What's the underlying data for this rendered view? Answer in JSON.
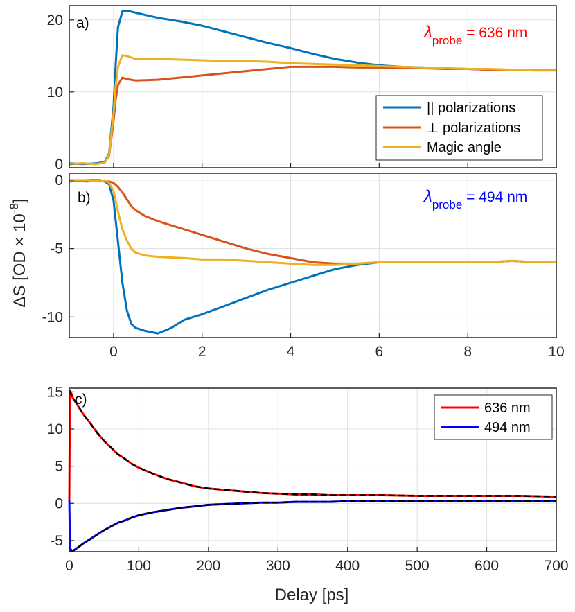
{
  "chart_data": [
    {
      "type": "line",
      "panel_label": "a)",
      "annotation": {
        "symbol": "λ",
        "subscript": "probe",
        "text": " = 636 nm",
        "color": "#ff0000"
      },
      "xlim": [
        -1,
        10
      ],
      "ylim": [
        -0.5,
        22
      ],
      "xticks": [
        0,
        2,
        4,
        6,
        8,
        10
      ],
      "yticks": [
        0,
        10,
        20
      ],
      "grid": true,
      "legend_position": "inside-right",
      "series": [
        {
          "name": "|| polarizations",
          "color": "#0072bd",
          "x": [
            -1.0,
            -0.7,
            -0.4,
            -0.2,
            -0.1,
            0.0,
            0.05,
            0.1,
            0.2,
            0.3,
            0.5,
            1.0,
            1.5,
            2.0,
            2.5,
            3.0,
            3.5,
            4.0,
            4.5,
            5.0,
            5.5,
            6.0,
            6.5,
            7.0,
            7.5,
            8.0,
            8.5,
            9.0,
            9.5,
            10.0
          ],
          "y": [
            0.1,
            0,
            0.1,
            0.3,
            1.5,
            8,
            14,
            19,
            21.2,
            21.3,
            21,
            20.3,
            19.8,
            19.2,
            18.4,
            17.6,
            16.8,
            16.1,
            15.3,
            14.6,
            14.1,
            13.7,
            13.5,
            13.4,
            13.3,
            13.2,
            13.1,
            13.1,
            13.1,
            13.0
          ]
        },
        {
          "name": "⊥ polarizations",
          "color": "#d95319",
          "x": [
            -1.0,
            -0.7,
            -0.4,
            -0.2,
            -0.1,
            0.0,
            0.05,
            0.1,
            0.2,
            0.3,
            0.5,
            1.0,
            1.5,
            2.0,
            2.5,
            3.0,
            3.5,
            4.0,
            4.5,
            5.0,
            5.5,
            6.0,
            6.5,
            7.0,
            7.5,
            8.0,
            8.5,
            9.0,
            9.5,
            10.0
          ],
          "y": [
            0,
            0.1,
            0,
            0.2,
            1.2,
            6,
            9,
            11,
            12,
            11.8,
            11.6,
            11.7,
            12,
            12.3,
            12.6,
            12.9,
            13.2,
            13.5,
            13.5,
            13.5,
            13.4,
            13.4,
            13.3,
            13.3,
            13.2,
            13.2,
            13.1,
            13.1,
            13.0,
            13.0
          ]
        },
        {
          "name": "Magic angle",
          "color": "#edb120",
          "x": [
            -1.0,
            -0.7,
            -0.4,
            -0.2,
            -0.1,
            0.0,
            0.05,
            0.1,
            0.2,
            0.3,
            0.5,
            1.0,
            1.5,
            2.0,
            2.5,
            3.0,
            3.5,
            4.0,
            4.5,
            5.0,
            5.5,
            6.0,
            6.5,
            7.0,
            7.5,
            8.0,
            8.5,
            9.0,
            9.5,
            10.0
          ],
          "y": [
            0,
            0.1,
            0,
            0.2,
            1.3,
            7,
            11,
            13.5,
            15.1,
            15,
            14.6,
            14.6,
            14.5,
            14.4,
            14.3,
            14.3,
            14.2,
            14.0,
            13.9,
            13.8,
            13.7,
            13.6,
            13.5,
            13.4,
            13.3,
            13.2,
            13.2,
            13.1,
            13.0,
            13.0
          ]
        }
      ]
    },
    {
      "type": "line",
      "panel_label": "b)",
      "annotation": {
        "symbol": "λ",
        "subscript": "probe",
        "text": " = 494 nm",
        "color": "#0000ff"
      },
      "xlim": [
        -1,
        10
      ],
      "ylim": [
        -11.5,
        0.5
      ],
      "xticks": [
        0,
        2,
        4,
        6,
        8,
        10
      ],
      "yticks": [
        -10,
        -5,
        0
      ],
      "grid": true,
      "series": [
        {
          "name": "|| polarizations",
          "color": "#0072bd",
          "x": [
            -1.0,
            -0.6,
            -0.3,
            -0.2,
            -0.1,
            0.0,
            0.1,
            0.2,
            0.3,
            0.4,
            0.5,
            0.7,
            1.0,
            1.3,
            1.6,
            2.0,
            2.5,
            3.0,
            3.5,
            4.0,
            4.5,
            5.0,
            5.5,
            6.0,
            6.5,
            7.0,
            7.5,
            8.0,
            8.5,
            9.0,
            9.5,
            10.0
          ],
          "y": [
            -0.1,
            0,
            0,
            -0.1,
            -0.3,
            -1.5,
            -4.5,
            -7.5,
            -9.5,
            -10.5,
            -10.8,
            -11.0,
            -11.2,
            -10.8,
            -10.2,
            -9.8,
            -9.2,
            -8.6,
            -8.0,
            -7.5,
            -7.0,
            -6.5,
            -6.2,
            -6.0,
            -6.0,
            -6.0,
            -6.0,
            -6.0,
            -6.0,
            -5.9,
            -6.0,
            -6.0
          ]
        },
        {
          "name": "⊥ polarizations",
          "color": "#d95319",
          "x": [
            -1.0,
            -0.6,
            -0.3,
            -0.2,
            -0.1,
            0.0,
            0.1,
            0.2,
            0.3,
            0.4,
            0.5,
            0.7,
            1.0,
            1.3,
            1.6,
            2.0,
            2.5,
            3.0,
            3.5,
            4.0,
            4.5,
            5.0,
            5.5,
            6.0,
            6.5,
            7.0,
            7.5,
            8.0,
            8.5,
            9.0,
            9.5,
            10.0
          ],
          "y": [
            0,
            -0.1,
            0,
            -0.1,
            -0.1,
            -0.2,
            -0.5,
            -0.9,
            -1.4,
            -1.9,
            -2.2,
            -2.6,
            -3.0,
            -3.3,
            -3.6,
            -4.0,
            -4.5,
            -5.0,
            -5.4,
            -5.7,
            -6.0,
            -6.1,
            -6.1,
            -6.0,
            -6.0,
            -6.0,
            -6.0,
            -6.0,
            -6.0,
            -5.9,
            -6.0,
            -6.0
          ]
        },
        {
          "name": "Magic angle",
          "color": "#edb120",
          "x": [
            -1.0,
            -0.6,
            -0.3,
            -0.2,
            -0.1,
            0.0,
            0.1,
            0.2,
            0.3,
            0.4,
            0.5,
            0.7,
            1.0,
            1.3,
            1.6,
            2.0,
            2.5,
            3.0,
            3.5,
            4.0,
            4.5,
            5.0,
            5.5,
            6.0,
            6.5,
            7.0,
            7.5,
            8.0,
            8.5,
            9.0,
            9.5,
            10.0
          ],
          "y": [
            0,
            0,
            -0.1,
            0,
            -0.2,
            -0.8,
            -2.3,
            -3.6,
            -4.4,
            -5.0,
            -5.3,
            -5.5,
            -5.6,
            -5.65,
            -5.7,
            -5.8,
            -5.8,
            -5.9,
            -6.0,
            -6.1,
            -6.2,
            -6.2,
            -6.1,
            -6.0,
            -6.0,
            -6.0,
            -6.0,
            -6.0,
            -6.0,
            -5.9,
            -6.0,
            -6.0
          ]
        }
      ]
    },
    {
      "type": "line",
      "panel_label": "c)",
      "xlim": [
        0,
        700
      ],
      "ylim": [
        -6.5,
        15.5
      ],
      "xticks": [
        0,
        100,
        200,
        300,
        400,
        500,
        600,
        700
      ],
      "yticks": [
        -5,
        0,
        5,
        10,
        15
      ],
      "xlabel": "Delay [ps]",
      "grid": true,
      "legend_position": "top-right",
      "series": [
        {
          "name": "636 nm",
          "color": "#ff0000",
          "x": [
            0,
            1,
            3,
            5,
            10,
            20,
            30,
            40,
            50,
            60,
            70,
            80,
            90,
            100,
            120,
            140,
            160,
            180,
            200,
            225,
            250,
            275,
            300,
            325,
            350,
            375,
            400,
            450,
            500,
            550,
            600,
            650,
            700
          ],
          "y": [
            0.5,
            15.2,
            14.8,
            14.2,
            13.5,
            12.0,
            10.8,
            9.5,
            8.4,
            7.5,
            6.6,
            6.0,
            5.3,
            4.8,
            4.0,
            3.3,
            2.8,
            2.3,
            2.0,
            1.8,
            1.6,
            1.4,
            1.3,
            1.2,
            1.2,
            1.1,
            1.1,
            1.1,
            1.0,
            1.0,
            1.0,
            1.0,
            0.9
          ]
        },
        {
          "name": "494 nm",
          "color": "#0000ff",
          "x": [
            0,
            1,
            3,
            5,
            10,
            20,
            30,
            40,
            50,
            60,
            70,
            80,
            90,
            100,
            120,
            140,
            160,
            180,
            200,
            225,
            250,
            275,
            300,
            325,
            350,
            375,
            400,
            450,
            500,
            550,
            600,
            650,
            700
          ],
          "y": [
            0.5,
            -6.0,
            -6.3,
            -6.4,
            -6.1,
            -5.4,
            -4.8,
            -4.2,
            -3.6,
            -3.1,
            -2.6,
            -2.3,
            -1.9,
            -1.6,
            -1.2,
            -0.9,
            -0.6,
            -0.4,
            -0.2,
            -0.1,
            0,
            0.1,
            0.1,
            0.2,
            0.2,
            0.2,
            0.3,
            0.3,
            0.3,
            0.3,
            0.3,
            0.3,
            0.3
          ]
        }
      ],
      "fits": {
        "color": "#000000",
        "style": "dashed",
        "x": [
          0,
          5,
          10,
          20,
          30,
          40,
          50,
          60,
          70,
          80,
          90,
          100,
          120,
          140,
          160,
          180,
          200,
          225,
          250,
          275,
          300,
          325,
          350,
          375,
          400,
          450,
          500,
          550,
          600,
          650,
          700
        ],
        "y_636": [
          15.2,
          14.2,
          13.5,
          12.0,
          10.8,
          9.5,
          8.4,
          7.5,
          6.6,
          6.0,
          5.3,
          4.8,
          4.0,
          3.3,
          2.8,
          2.3,
          2.0,
          1.8,
          1.6,
          1.4,
          1.3,
          1.2,
          1.2,
          1.1,
          1.1,
          1.1,
          1.0,
          1.0,
          1.0,
          1.0,
          0.9
        ],
        "y_494": [
          -6.5,
          -6.4,
          -6.1,
          -5.4,
          -4.8,
          -4.2,
          -3.6,
          -3.1,
          -2.6,
          -2.3,
          -1.9,
          -1.6,
          -1.2,
          -0.9,
          -0.6,
          -0.4,
          -0.2,
          -0.1,
          0,
          0.1,
          0.1,
          0.2,
          0.2,
          0.2,
          0.3,
          0.3,
          0.3,
          0.3,
          0.3,
          0.3,
          0.3
        ]
      }
    }
  ],
  "shared": {
    "ylabel_main": "ΔS [OD × 10",
    "ylabel_exp": "-8",
    "ylabel_close": "]"
  }
}
